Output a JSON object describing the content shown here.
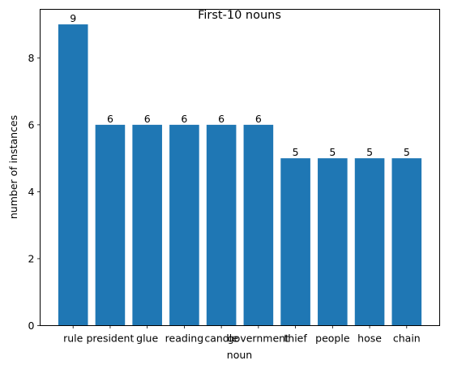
{
  "chart_data": {
    "type": "bar",
    "title": "First-10 nouns",
    "xlabel": "noun",
    "ylabel": "number of instances",
    "categories": [
      "rule",
      "president",
      "glue",
      "reading",
      "candle",
      "government",
      "thief",
      "people",
      "hose",
      "chain"
    ],
    "values": [
      9,
      6,
      6,
      6,
      6,
      6,
      5,
      5,
      5,
      5
    ],
    "yticks": [
      0,
      2,
      4,
      6,
      8
    ],
    "ylim": [
      0,
      9.45
    ],
    "grid": false,
    "bar_color": "#1f77b4"
  }
}
